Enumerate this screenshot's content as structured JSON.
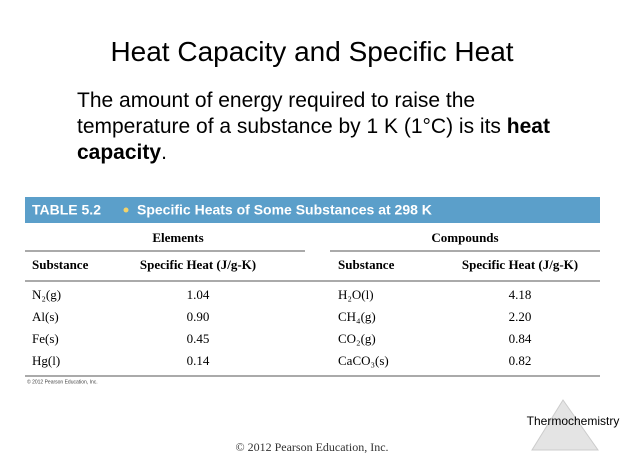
{
  "slide": {
    "title": "Heat Capacity and Specific Heat",
    "body": {
      "text": "The amount of energy required to raise the temperature of a substance by 1 K (1°C) is its",
      "term": "heat capacity",
      "end": "."
    },
    "table": {
      "label": "TABLE 5.2",
      "caption": "Specific Heats of Some Substances at 298 K",
      "groups": [
        "Elements",
        "Compounds"
      ],
      "headers": [
        "Substance",
        "Specific Heat (J/g-K)",
        "Substance",
        "Specific Heat (J/g-K)"
      ],
      "rows": [
        [
          "N₂(g)",
          "1.04",
          "H₂O(l)",
          "4.18"
        ],
        [
          "Al(s)",
          "0.90",
          "CH₄(g)",
          "2.20"
        ],
        [
          "Fe(s)",
          "0.45",
          "CO₂(g)",
          "0.84"
        ],
        [
          "Hg(l)",
          "0.14",
          "CaCO₃(s)",
          "0.82"
        ]
      ],
      "credit": "© 2012 Pearson Education, Inc."
    },
    "logo": "Thermochemistry",
    "footer": "© 2012 Pearson Education, Inc."
  }
}
